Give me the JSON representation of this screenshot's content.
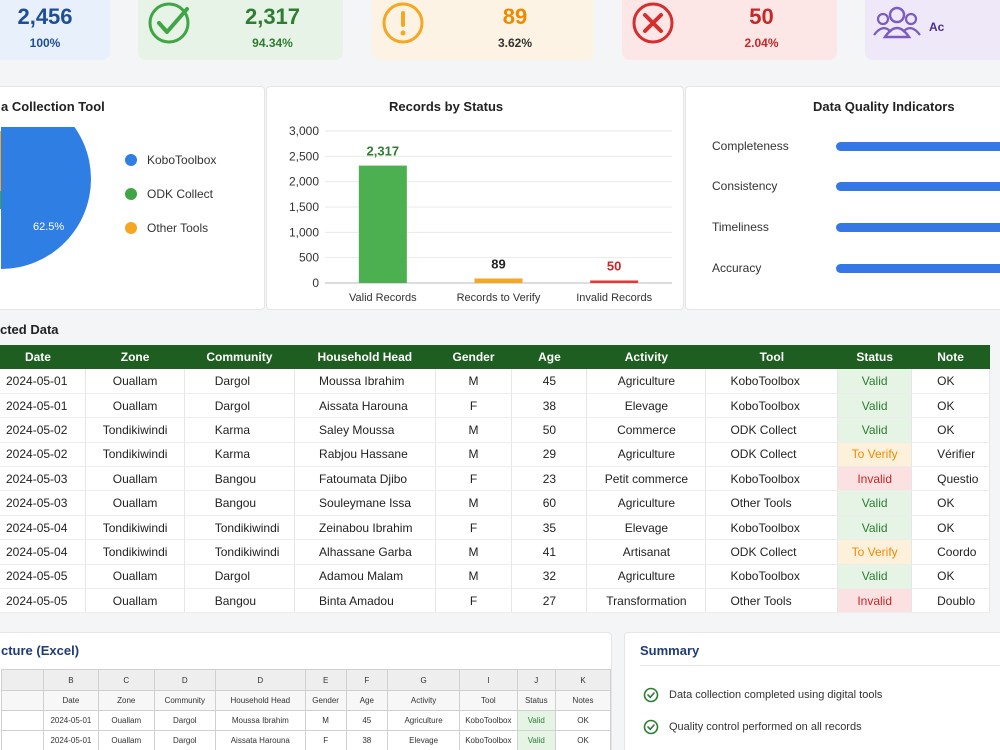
{
  "kpis": [
    {
      "value": "2,456",
      "pct": "100%",
      "icon": "database-icon",
      "color": "#1f4e96"
    },
    {
      "value": "2,317",
      "pct": "94.34%",
      "icon": "check-circle-icon",
      "color": "#2e7d32"
    },
    {
      "value": "89",
      "pct": "3.62%",
      "icon": "warning-icon",
      "color": "#ef8a00"
    },
    {
      "value": "50",
      "pct": "2.04%",
      "icon": "x-circle-icon",
      "color": "#c62828"
    },
    {
      "value": "",
      "pct": "Ac",
      "icon": "users-icon",
      "color": "#6b4aa8"
    }
  ],
  "pie": {
    "title": "a Collection Tool",
    "label": "62.5%",
    "legend": [
      "KoboToolbox",
      "ODK Collect",
      "Other Tools"
    ],
    "colors": [
      "#2f7ee3",
      "#3fa545",
      "#f5a623"
    ]
  },
  "bar": {
    "title": "Records by Status",
    "colors": [
      "#4caf50",
      "#f5a623",
      "#e53935"
    ]
  },
  "chart_data": {
    "type": "bar",
    "title": "Records by Status",
    "categories": [
      "Valid Records",
      "Records to Verify",
      "Invalid Records"
    ],
    "values": [
      2317,
      89,
      50
    ],
    "value_labels": [
      "2,317",
      "89",
      "50"
    ],
    "yticks": [
      "0",
      "500",
      "1,000",
      "1,500",
      "2,000",
      "2,500",
      "3,000"
    ],
    "ylim": [
      0,
      3000
    ],
    "grid": true
  },
  "quality": {
    "title": "Data Quality Indicators",
    "items": [
      "Completeness",
      "Consistency",
      "Timeliness",
      "Accuracy"
    ]
  },
  "table": {
    "title": "cted Data",
    "headers": [
      "Date",
      "Zone",
      "Community",
      "Household Head",
      "Gender",
      "Age",
      "Activity",
      "Tool",
      "Status",
      "Note"
    ],
    "rows": [
      [
        "2024-05-01",
        "Ouallam",
        "Dargol",
        "Moussa Ibrahim",
        "M",
        "45",
        "Agriculture",
        "KoboToolbox",
        "Valid",
        "OK"
      ],
      [
        "2024-05-01",
        "Ouallam",
        "Dargol",
        "Aissata Harouna",
        "F",
        "38",
        "Elevage",
        "KoboToolbox",
        "Valid",
        "OK"
      ],
      [
        "2024-05-02",
        "Tondikiwindi",
        "Karma",
        "Saley Moussa",
        "M",
        "50",
        "Commerce",
        "ODK Collect",
        "Valid",
        "OK"
      ],
      [
        "2024-05-02",
        "Tondikiwindi",
        "Karma",
        "Rabjou Hassane",
        "M",
        "29",
        "Agriculture",
        "ODK Collect",
        "To Verify",
        "Vérifier"
      ],
      [
        "2024-05-03",
        "Ouallam",
        "Bangou",
        "Fatoumata Djibo",
        "F",
        "23",
        "Petit commerce",
        "KoboToolbox",
        "Invalid",
        "Questio"
      ],
      [
        "2024-05-03",
        "Ouallam",
        "Bangou",
        "Souleymane Issa",
        "M",
        "60",
        "Agriculture",
        "Other Tools",
        "Valid",
        "OK"
      ],
      [
        "2024-05-04",
        "Tondikiwindi",
        "Tondikiwindi",
        "Zeinabou Ibrahim",
        "F",
        "35",
        "Elevage",
        "KoboToolbox",
        "Valid",
        "OK"
      ],
      [
        "2024-05-04",
        "Tondikiwindi",
        "Tondikiwindi",
        "Alhassane Garba",
        "M",
        "41",
        "Artisanat",
        "ODK Collect",
        "To Verify",
        "Coordo"
      ],
      [
        "2024-05-05",
        "Ouallam",
        "Dargol",
        "Adamou Malam",
        "M",
        "32",
        "Agriculture",
        "KoboToolbox",
        "Valid",
        "OK"
      ],
      [
        "2024-05-05",
        "Ouallam",
        "Bangou",
        "Binta Amadou",
        "F",
        "27",
        "Transformation",
        "Other Tools",
        "Invalid",
        "Doublo"
      ]
    ]
  },
  "excel": {
    "title": "cture (Excel)",
    "col_letters": [
      "B",
      "C",
      "D",
      "D",
      "E",
      "F",
      "G",
      "I",
      "J",
      "K"
    ],
    "headers": [
      "Date",
      "Zone",
      "Community",
      "Household Head",
      "Gender",
      "Age",
      "Activity",
      "Tool",
      "Status",
      "Notes"
    ],
    "rows": [
      [
        "2024-05-01",
        "Ouallam",
        "Dargol",
        "Moussa Ibrahim",
        "M",
        "45",
        "Agriculture",
        "KoboToolbox",
        "Valid",
        "OK"
      ],
      [
        "2024-05-01",
        "Ouallam",
        "Dargol",
        "Aissata Harouna",
        "F",
        "38",
        "Elevage",
        "KoboToolbox",
        "Valid",
        "OK"
      ]
    ]
  },
  "summary": {
    "title": "Summary",
    "items": [
      "Data collection completed using digital tools",
      "Quality control performed on all records"
    ]
  }
}
